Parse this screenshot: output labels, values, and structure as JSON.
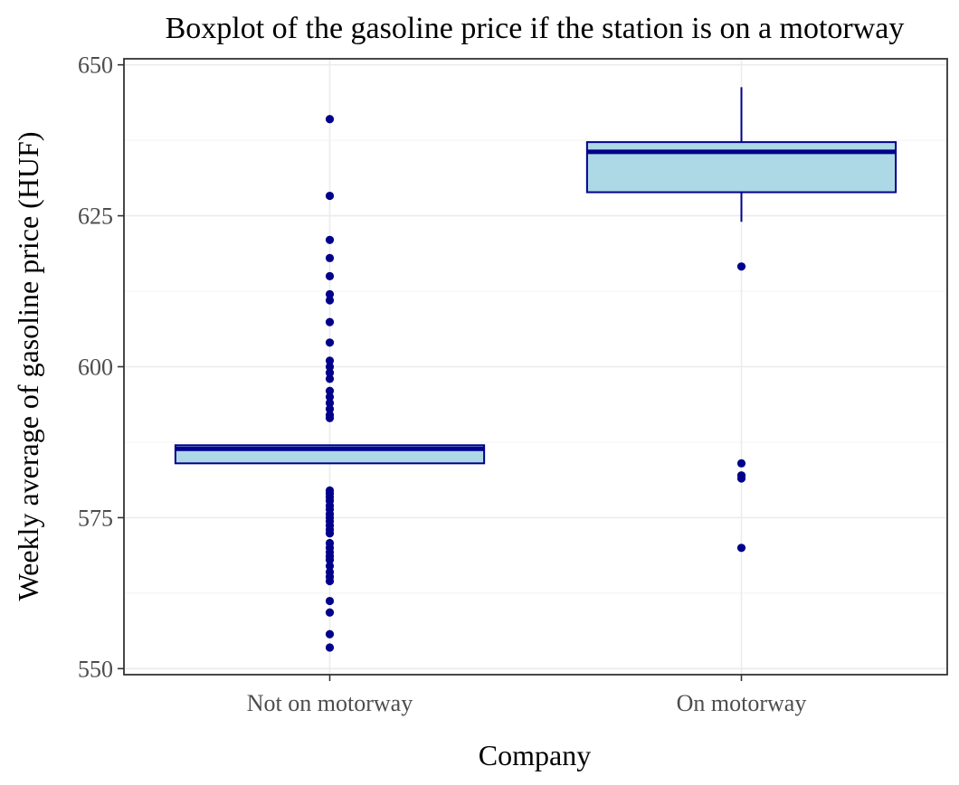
{
  "chart_data": {
    "type": "box",
    "title": "Boxplot of the gasoline price if the station is on a motorway",
    "xlabel": "Company",
    "ylabel": "Weekly average of gasoline price (HUF)",
    "ylim": [
      549,
      651
    ],
    "yticks": [
      550,
      575,
      600,
      625,
      650
    ],
    "grid": true,
    "legend": "none",
    "colors": {
      "box_fill": "#add8e6",
      "box_line": "#00008b",
      "outlier": "#00008b"
    },
    "categories": [
      "Not on motorway",
      "On motorway"
    ],
    "boxes": [
      {
        "category": "Not on motorway",
        "whisker_low": 584,
        "q1": 584,
        "median": 586.4,
        "q3": 587,
        "whisker_high": 587,
        "outliers": [
          641,
          628.3,
          621,
          618,
          615,
          612,
          611,
          607.4,
          604,
          601,
          600,
          599,
          598,
          596,
          595,
          594,
          593,
          592,
          591.5,
          579.5,
          579,
          578.4,
          577.8,
          577,
          576.4,
          575.6,
          575,
          574.4,
          573.7,
          573,
          572.4,
          570.8,
          570,
          569.3,
          568.6,
          568,
          567,
          566,
          565.2,
          564.5,
          561.2,
          559.3,
          555.7,
          553.5
        ]
      },
      {
        "category": "On motorway",
        "whisker_low": 624,
        "q1": 628.9,
        "median": 635.6,
        "q3": 637.2,
        "whisker_high": 646.3,
        "outliers": [
          616.6,
          584,
          582,
          581.5,
          570
        ]
      }
    ]
  }
}
